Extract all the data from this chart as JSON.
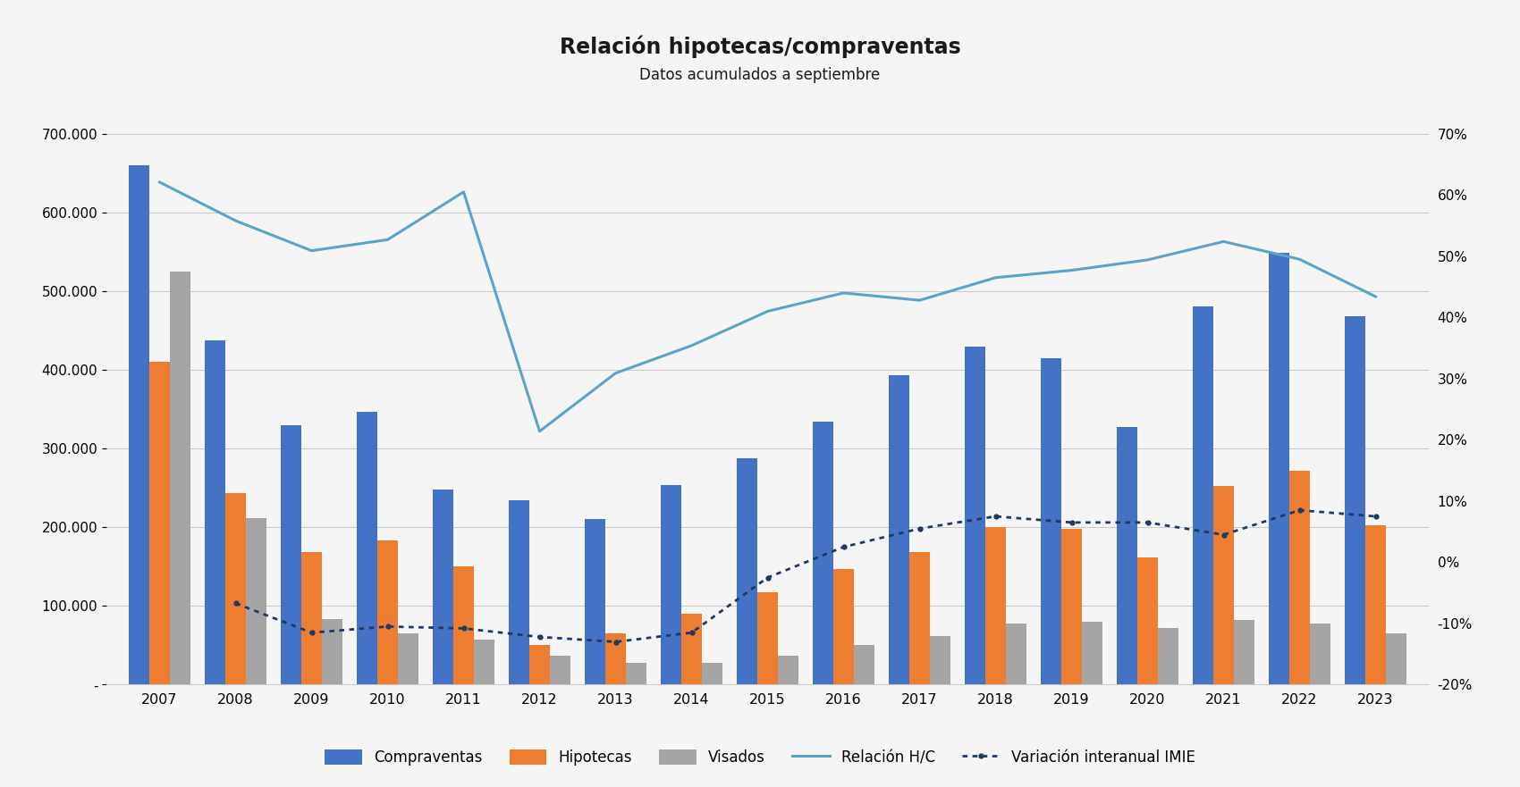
{
  "title": "Relación hipotecas/compraventas",
  "subtitle": "Datos acumulados a septiembre",
  "years": [
    2007,
    2008,
    2009,
    2010,
    2011,
    2012,
    2013,
    2014,
    2015,
    2016,
    2017,
    2018,
    2019,
    2020,
    2021,
    2022,
    2023
  ],
  "compraventas": [
    660000,
    437000,
    330000,
    347000,
    248000,
    234000,
    210000,
    254000,
    288000,
    334000,
    393000,
    430000,
    415000,
    328000,
    481000,
    549000,
    468000
  ],
  "hipotecas": [
    410000,
    244000,
    168000,
    183000,
    150000,
    50000,
    65000,
    90000,
    118000,
    147000,
    168000,
    200000,
    198000,
    162000,
    252000,
    272000,
    203000
  ],
  "visados": [
    525000,
    212000,
    83000,
    65000,
    57000,
    37000,
    28000,
    28000,
    37000,
    50000,
    62000,
    78000,
    80000,
    72000,
    82000,
    78000,
    65000
  ],
  "relacion_hc": [
    0.621,
    0.558,
    0.509,
    0.527,
    0.605,
    0.214,
    0.309,
    0.354,
    0.41,
    0.44,
    0.428,
    0.465,
    0.477,
    0.494,
    0.524,
    0.495,
    0.434
  ],
  "variacion_imie": [
    null,
    -0.067,
    -0.115,
    -0.105,
    -0.108,
    -0.122,
    -0.13,
    -0.115,
    -0.025,
    0.025,
    0.055,
    0.075,
    0.065,
    0.065,
    0.045,
    0.085,
    0.075
  ],
  "bar_color_compraventas": "#4472C4",
  "bar_color_hipotecas": "#ED7D31",
  "bar_color_visados": "#A5A5A5",
  "line_color_hc": "#5BA3C9",
  "line_color_var": "#1F3864",
  "background_color": "#F5F5F5",
  "ylim_left": [
    0,
    700000
  ],
  "ylim_right": [
    -0.2,
    0.7
  ],
  "yticks_left": [
    0,
    100000,
    200000,
    300000,
    400000,
    500000,
    600000,
    700000
  ],
  "yticks_right": [
    -0.2,
    -0.1,
    0.0,
    0.1,
    0.2,
    0.3,
    0.4,
    0.5,
    0.6,
    0.7
  ]
}
